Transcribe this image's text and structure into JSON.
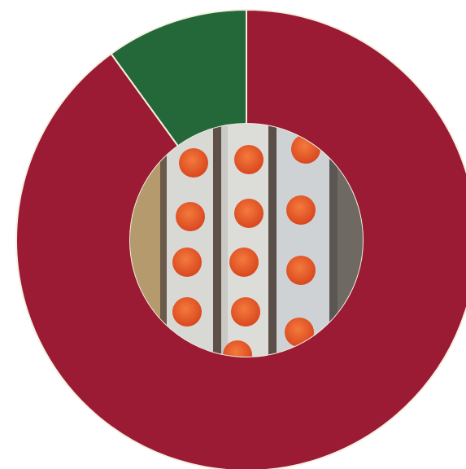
{
  "chart_data": {
    "type": "pie",
    "donut": true,
    "values": [
      90,
      10
    ],
    "colors": [
      "#9b1a34",
      "#24683a"
    ]
  }
}
